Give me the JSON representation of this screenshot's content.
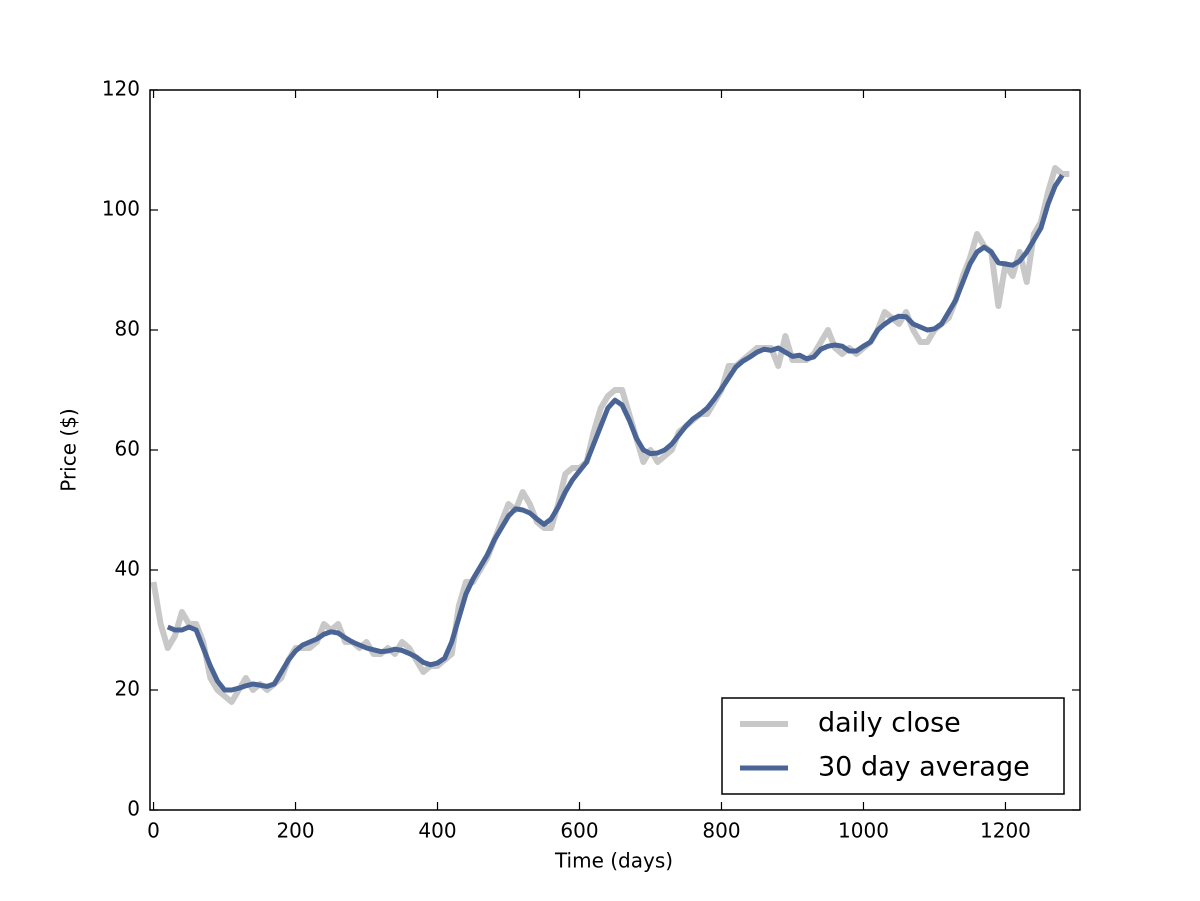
{
  "chart_data": {
    "type": "line",
    "xlabel": "Time (days)",
    "ylabel": "Price ($)",
    "x": [
      0,
      10,
      20,
      30,
      40,
      50,
      60,
      70,
      80,
      90,
      100,
      110,
      120,
      130,
      140,
      150,
      160,
      170,
      180,
      190,
      200,
      210,
      220,
      230,
      240,
      250,
      260,
      270,
      280,
      290,
      300,
      310,
      320,
      330,
      340,
      350,
      360,
      370,
      380,
      390,
      400,
      410,
      420,
      430,
      440,
      450,
      460,
      470,
      480,
      490,
      500,
      510,
      520,
      530,
      540,
      550,
      560,
      570,
      580,
      590,
      600,
      610,
      620,
      630,
      640,
      650,
      660,
      670,
      680,
      690,
      700,
      710,
      720,
      730,
      740,
      750,
      760,
      770,
      780,
      790,
      800,
      810,
      820,
      830,
      840,
      850,
      860,
      870,
      880,
      890,
      900,
      910,
      920,
      930,
      940,
      950,
      960,
      970,
      980,
      990,
      1000,
      1010,
      1020,
      1030,
      1040,
      1050,
      1060,
      1070,
      1080,
      1090,
      1100,
      1110,
      1120,
      1130,
      1140,
      1150,
      1160,
      1170,
      1180,
      1190,
      1200,
      1210,
      1220,
      1230,
      1240,
      1250,
      1260,
      1270,
      1280,
      1290
    ],
    "series": [
      {
        "name": "daily close",
        "color": "#c8c8c8",
        "width": 6,
        "values": [
          38,
          31,
          27,
          29,
          33,
          31,
          31,
          28,
          22,
          20,
          19,
          18,
          20,
          22,
          20,
          21,
          20,
          21,
          22,
          25,
          27,
          27,
          27,
          28,
          31,
          30,
          31,
          28,
          28,
          27,
          28,
          26,
          26,
          27,
          26,
          28,
          27,
          25,
          23,
          24,
          24,
          25,
          26,
          34,
          38,
          38,
          40,
          42,
          45,
          48,
          51,
          50,
          53,
          51,
          48,
          47,
          47,
          51,
          56,
          57,
          57,
          58,
          63,
          67,
          69,
          70,
          70,
          66,
          62,
          58,
          60,
          58,
          59,
          60,
          63,
          64,
          65,
          66,
          66,
          68,
          70,
          74,
          74,
          75,
          76,
          77,
          77,
          77,
          74,
          79,
          75,
          75,
          75,
          76,
          78,
          80,
          77,
          76,
          77,
          76,
          77,
          78,
          80,
          83,
          82,
          81,
          83,
          80,
          78,
          78,
          80,
          81,
          82,
          85,
          89,
          92,
          96,
          94,
          93,
          84,
          91,
          89,
          93,
          88,
          96,
          98,
          103,
          107,
          106,
          106
        ]
      },
      {
        "name": "30 day average",
        "color": "#4a6595",
        "width": 5,
        "values": [
          null,
          null,
          30.5,
          30,
          30,
          30.5,
          30,
          27,
          24,
          21.5,
          20,
          20,
          20.3,
          20.7,
          21,
          20.8,
          20.6,
          21,
          23,
          25,
          26.5,
          27.5,
          28,
          28.5,
          29.3,
          29.7,
          29.5,
          28.7,
          28,
          27.5,
          27,
          26.7,
          26.4,
          26.5,
          26.8,
          26.6,
          26.1,
          25.5,
          24.6,
          24.2,
          24.5,
          25.3,
          28,
          32,
          36,
          38.5,
          40.5,
          42.5,
          45,
          47,
          49,
          50.2,
          50,
          49.5,
          48.5,
          47.6,
          48.5,
          50.5,
          53,
          55,
          56.5,
          58,
          61,
          64,
          67,
          68.3,
          67.5,
          65,
          62,
          60,
          59.4,
          59.5,
          60,
          61,
          62.5,
          64,
          65.2,
          66,
          67,
          68.5,
          70.2,
          72,
          73.8,
          74.8,
          75.5,
          76.3,
          76.8,
          76.6,
          77,
          76.3,
          75.6,
          75.8,
          75.2,
          75.5,
          76.8,
          77.3,
          77.5,
          77.3,
          76.5,
          76.5,
          77.3,
          78,
          80,
          81,
          81.8,
          82.3,
          82.2,
          81,
          80.5,
          80,
          80.2,
          81,
          83,
          85,
          88,
          91,
          93,
          93.8,
          93,
          91.2,
          91,
          90.8,
          91.5,
          93,
          95,
          97,
          101,
          104,
          105.8,
          null
        ]
      }
    ],
    "xlim": [
      -5,
      1305
    ],
    "ylim": [
      0,
      120
    ],
    "xticks": [
      0,
      200,
      400,
      600,
      800,
      1000,
      1200
    ],
    "yticks": [
      0,
      20,
      40,
      60,
      80,
      100,
      120
    ],
    "grid": false,
    "legend": "lower right"
  }
}
